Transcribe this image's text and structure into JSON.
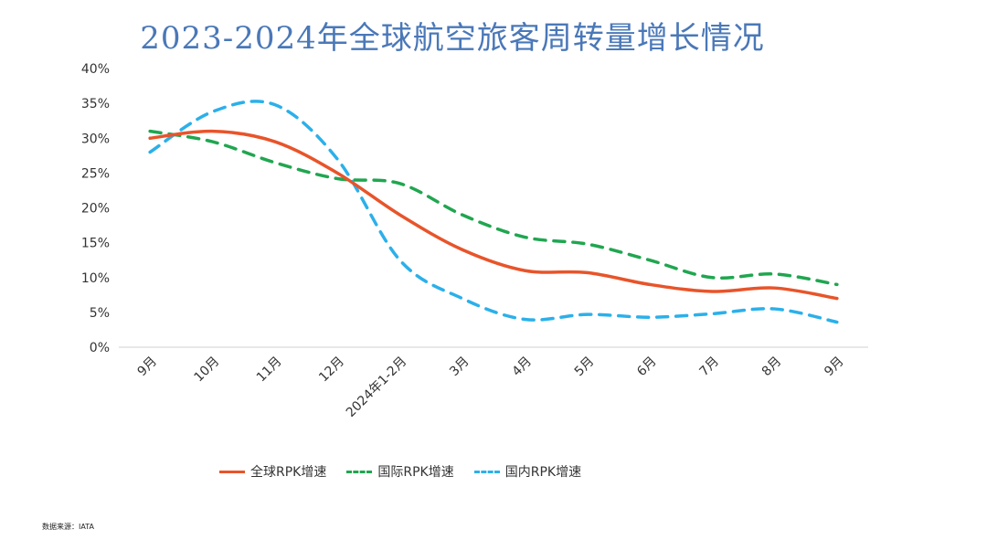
{
  "chart_data": {
    "type": "line",
    "title": "2023-2024年全球航空旅客周转量增长情况",
    "categories": [
      "9月",
      "10月",
      "11月",
      "12月",
      "2024年1-2月",
      "3月",
      "4月",
      "5月",
      "6月",
      "7月",
      "8月",
      "9月"
    ],
    "y_ticks": [
      "0%",
      "5%",
      "10%",
      "15%",
      "20%",
      "25%",
      "30%",
      "35%",
      "40%"
    ],
    "ylim": [
      0,
      40
    ],
    "series": [
      {
        "name": "全球RPK增速",
        "color": "#e8542a",
        "dash": "solid",
        "values": [
          30.0,
          31.0,
          29.5,
          25.0,
          19.0,
          14.0,
          11.0,
          10.7,
          9.0,
          8.0,
          8.5,
          7.0
        ]
      },
      {
        "name": "国际RPK增速",
        "color": "#20a650",
        "dash": "dashed",
        "values": [
          31.0,
          29.5,
          26.5,
          24.2,
          23.5,
          19.0,
          15.8,
          14.8,
          12.5,
          10.0,
          10.5,
          9.0
        ]
      },
      {
        "name": "国内RPK增速",
        "color": "#2bb0ea",
        "dash": "dashed",
        "values": [
          28.0,
          33.8,
          34.8,
          27.0,
          12.5,
          7.0,
          4.0,
          4.7,
          4.3,
          4.8,
          5.5,
          3.6
        ]
      }
    ],
    "legend_position": "bottom"
  },
  "source_text": "数据来源：IATA"
}
